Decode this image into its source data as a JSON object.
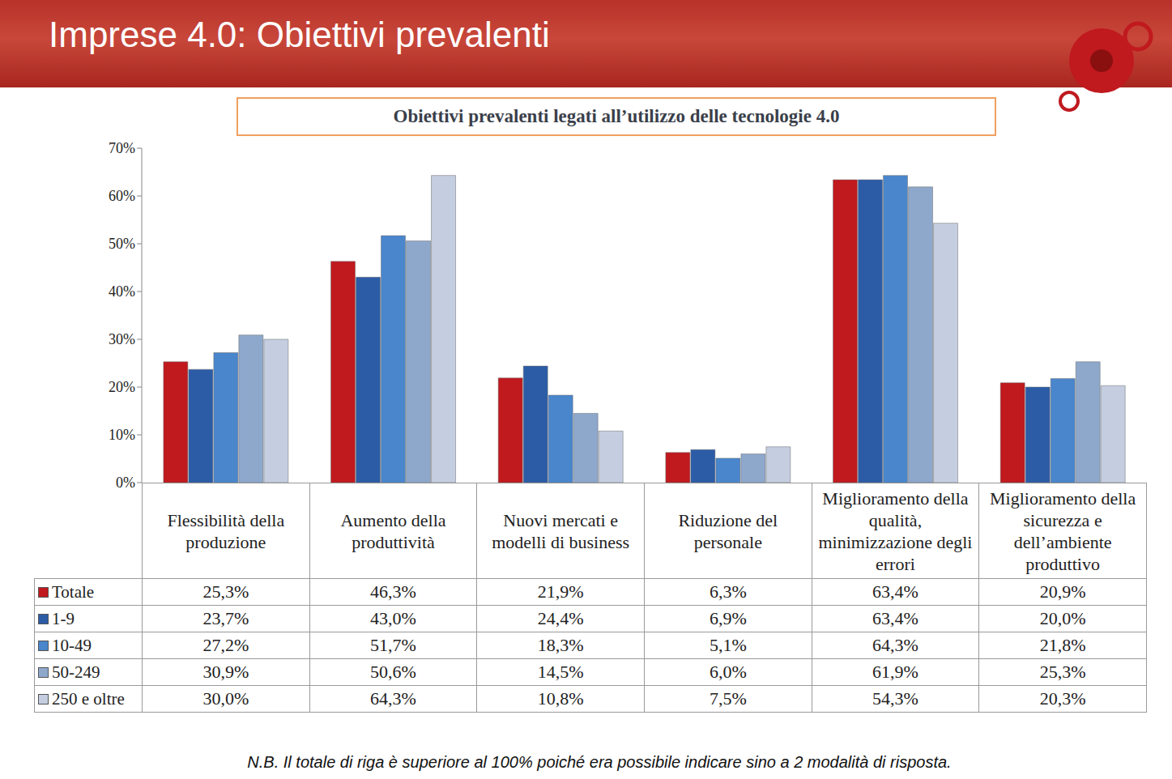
{
  "slide_title": "Imprese 4.0: Obiettivi prevalenti",
  "chart_data": {
    "type": "bar",
    "title": "Obiettivi prevalenti legati all’utilizzo delle tecnologie 4.0",
    "categories": [
      "Flessibilità della produzione",
      "Aumento della produttività",
      "Nuovi mercati e modelli di business",
      "Riduzione del personale",
      "Miglioramento della qualità, minimizzazione degli errori",
      "Miglioramento della sicurezza e dell’ambiente produttivo"
    ],
    "series": [
      {
        "name": "Totale",
        "color": "#c0191e",
        "values": [
          25.3,
          46.3,
          21.9,
          6.3,
          63.4,
          20.9
        ],
        "value_labels": [
          "25,3%",
          "46,3%",
          "21,9%",
          "6,3%",
          "63,4%",
          "20,9%"
        ]
      },
      {
        "name": "1-9",
        "color": "#2c5ca6",
        "values": [
          23.7,
          43.0,
          24.4,
          6.9,
          63.4,
          20.0
        ],
        "value_labels": [
          "23,7%",
          "43,0%",
          "24,4%",
          "6,9%",
          "63,4%",
          "20,0%"
        ]
      },
      {
        "name": "10-49",
        "color": "#4a86cc",
        "values": [
          27.2,
          51.7,
          18.3,
          5.1,
          64.3,
          21.8
        ],
        "value_labels": [
          "27,2%",
          "51,7%",
          "18,3%",
          "5,1%",
          "64,3%",
          "21,8%"
        ]
      },
      {
        "name": "50-249",
        "color": "#8ea8cc",
        "values": [
          30.9,
          50.6,
          14.5,
          6.0,
          61.9,
          25.3
        ],
        "value_labels": [
          "30,9%",
          "50,6%",
          "14,5%",
          "6,0%",
          "61,9%",
          "25,3%"
        ]
      },
      {
        "name": "250 e oltre",
        "color": "#c4cee0",
        "values": [
          30.0,
          64.3,
          10.8,
          7.5,
          54.3,
          20.3
        ],
        "value_labels": [
          "30,0%",
          "64,3%",
          "10,8%",
          "7,5%",
          "54,3%",
          "20,3%"
        ]
      }
    ],
    "ylim": [
      0,
      70
    ],
    "yticks": [
      {
        "value": 0,
        "label": "0%"
      },
      {
        "value": 10,
        "label": "10%"
      },
      {
        "value": 20,
        "label": "20%"
      },
      {
        "value": 30,
        "label": "30%"
      },
      {
        "value": 40,
        "label": "40%"
      },
      {
        "value": 50,
        "label": "50%"
      },
      {
        "value": 60,
        "label": "60%"
      },
      {
        "value": 70,
        "label": "70%"
      }
    ],
    "grid": false
  },
  "note": "N.B. Il totale di riga è superiore al 100% poiché era possibile indicare sino a 2 modalità di risposta."
}
